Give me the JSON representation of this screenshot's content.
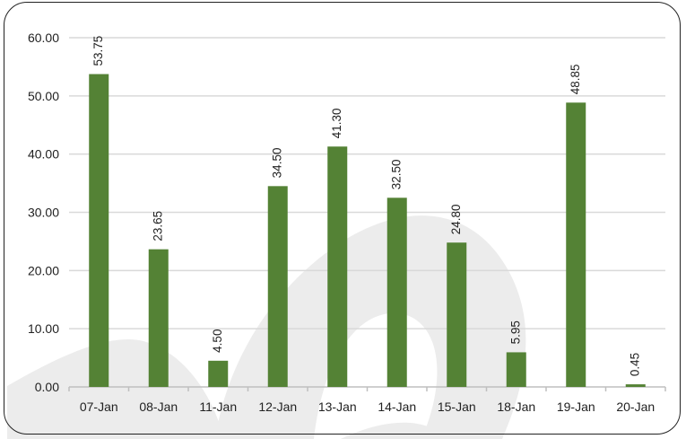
{
  "chart_data": {
    "type": "bar",
    "categories": [
      "07-Jan",
      "08-Jan",
      "11-Jan",
      "12-Jan",
      "13-Jan",
      "14-Jan",
      "15-Jan",
      "18-Jan",
      "19-Jan",
      "20-Jan"
    ],
    "series": [
      {
        "values": [
          53.75,
          23.65,
          4.5,
          34.5,
          41.3,
          32.5,
          24.8,
          5.95,
          48.85,
          0.45
        ],
        "labels": [
          "53.75",
          "23.65",
          "4.50",
          "34.50",
          "41.30",
          "32.50",
          "24.80",
          "5.95",
          "48.85",
          "0.45"
        ]
      }
    ],
    "y_ticks": [
      "0.00",
      "10.00",
      "20.00",
      "30.00",
      "40.00",
      "50.00",
      "60.00"
    ],
    "ylim": [
      0,
      60
    ],
    "title": "",
    "xlabel": "",
    "ylabel": "",
    "grid": true,
    "legend": "none",
    "colors": {
      "bar": "#548235",
      "grid": "#d9d9d9",
      "axis": "#bfbfbf",
      "watermark": "#ececec"
    }
  }
}
